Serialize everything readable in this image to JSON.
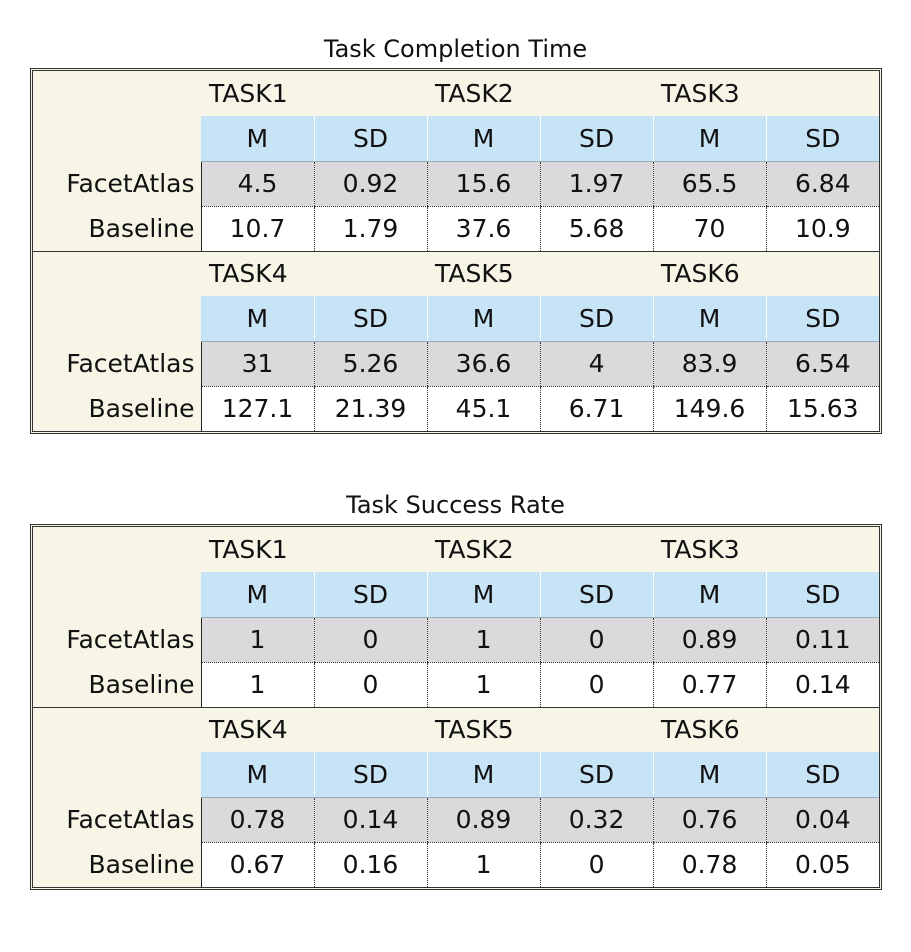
{
  "chart_data": [
    {
      "type": "table",
      "title": "Task Completion Time",
      "row_labels": [
        "FacetAtlas",
        "Baseline"
      ],
      "stat_labels": [
        "M",
        "SD"
      ],
      "blocks": [
        {
          "tasks": [
            "TASK1",
            "TASK2",
            "TASK3"
          ],
          "rows": [
            {
              "label": "FacetAtlas",
              "values": [
                "4.5",
                "0.92",
                "15.6",
                "1.97",
                "65.5",
                "6.84"
              ]
            },
            {
              "label": "Baseline",
              "values": [
                "10.7",
                "1.79",
                "37.6",
                "5.68",
                "70",
                "10.9"
              ]
            }
          ]
        },
        {
          "tasks": [
            "TASK4",
            "TASK5",
            "TASK6"
          ],
          "rows": [
            {
              "label": "FacetAtlas",
              "values": [
                "31",
                "5.26",
                "36.6",
                "4",
                "83.9",
                "6.54"
              ]
            },
            {
              "label": "Baseline",
              "values": [
                "127.1",
                "21.39",
                "45.1",
                "6.71",
                "149.6",
                "15.63"
              ]
            }
          ]
        }
      ]
    },
    {
      "type": "table",
      "title": "Task Success Rate",
      "row_labels": [
        "FacetAtlas",
        "Baseline"
      ],
      "stat_labels": [
        "M",
        "SD"
      ],
      "blocks": [
        {
          "tasks": [
            "TASK1",
            "TASK2",
            "TASK3"
          ],
          "rows": [
            {
              "label": "FacetAtlas",
              "values": [
                "1",
                "0",
                "1",
                "0",
                "0.89",
                "0.11"
              ]
            },
            {
              "label": "Baseline",
              "values": [
                "1",
                "0",
                "1",
                "0",
                "0.77",
                "0.14"
              ]
            }
          ]
        },
        {
          "tasks": [
            "TASK4",
            "TASK5",
            "TASK6"
          ],
          "rows": [
            {
              "label": "FacetAtlas",
              "values": [
                "0.78",
                "0.14",
                "0.89",
                "0.32",
                "0.76",
                "0.04"
              ]
            },
            {
              "label": "Baseline",
              "values": [
                "0.67",
                "0.16",
                "1",
                "0",
                "0.78",
                "0.05"
              ]
            }
          ]
        }
      ]
    }
  ],
  "colors": {
    "frame_bg": "#f6f5e6",
    "stat_header_bg": "#c7e3f6",
    "facetatlas_row_bg": "#dcd9dc",
    "baseline_row_bg": "#ffffff"
  }
}
